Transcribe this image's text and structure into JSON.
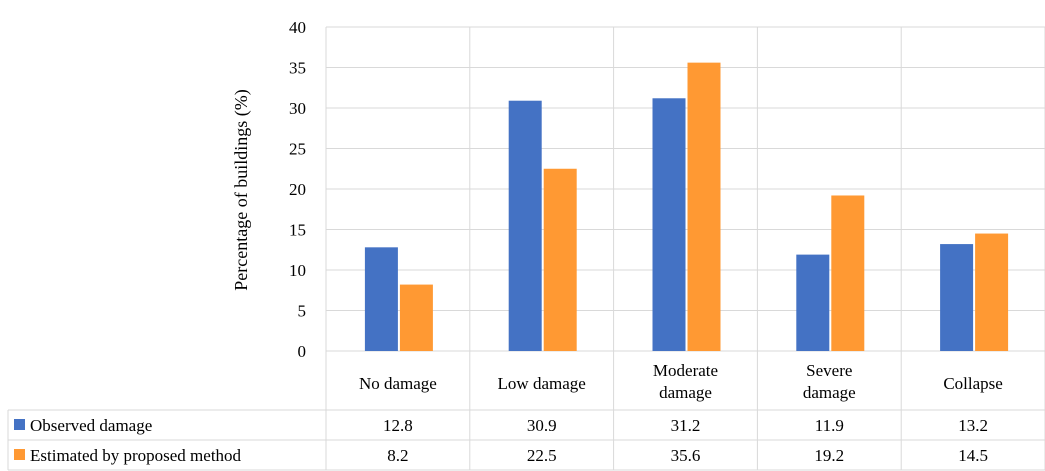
{
  "chart_data": {
    "type": "bar",
    "ylabel": "Percentage of buildings (%)",
    "ylim": [
      0,
      40
    ],
    "yticks": [
      0,
      5,
      10,
      15,
      20,
      25,
      30,
      35,
      40
    ],
    "grid": true,
    "categories": [
      [
        "No damage"
      ],
      [
        "Low damage"
      ],
      [
        "Moderate",
        "damage"
      ],
      [
        "Severe",
        "damage"
      ],
      [
        "Collapse"
      ]
    ],
    "series": [
      {
        "name": "Observed damage",
        "color": "#4472C4",
        "values": [
          12.8,
          30.9,
          31.2,
          11.9,
          13.2
        ],
        "labels": [
          "12.8",
          "30.9",
          "31.2",
          "11.9",
          "13.2"
        ]
      },
      {
        "name": "Estimated by proposed method",
        "color": "#FF9933",
        "values": [
          8.2,
          22.5,
          35.6,
          19.2,
          14.5
        ],
        "labels": [
          "8.2",
          "22.5",
          "35.6",
          "19.2",
          "14.5"
        ]
      }
    ],
    "legend_placement": "data-table"
  }
}
